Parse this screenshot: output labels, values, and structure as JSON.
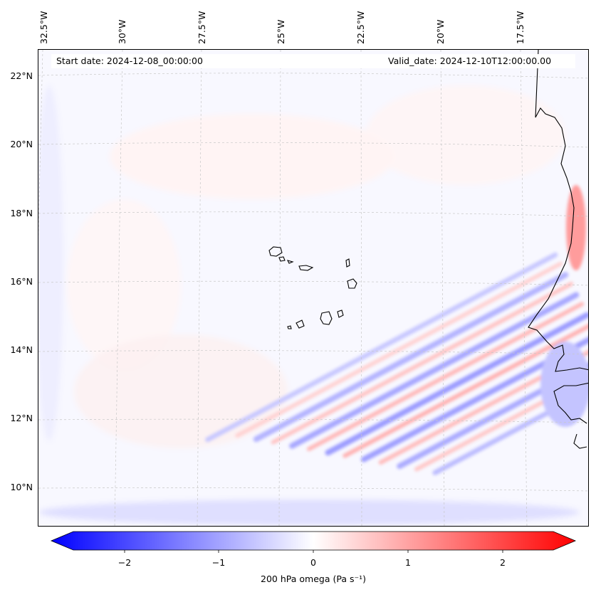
{
  "header": {
    "start_date": "Start date: 2024-12-08_00:00:00",
    "valid_date": "Valid_date: 2024-12-10T12:00:00.00"
  },
  "map": {
    "lon_labels": [
      "32.5°W",
      "30°W",
      "27.5°W",
      "25°W",
      "22.5°W",
      "20°W",
      "17.5°W"
    ],
    "lat_labels": [
      "22°N",
      "20°N",
      "18°N",
      "16°N",
      "14°N",
      "12°N",
      "10°N"
    ]
  },
  "colorbar": {
    "label": "200 hPa omega (Pa s⁻¹)",
    "ticks": [
      "−2",
      "−1",
      "0",
      "1",
      "2"
    ],
    "range": [
      -2.75,
      2.75
    ],
    "colors": {
      "negative": "#0000ff",
      "zero": "#ffffff",
      "positive": "#ff0000"
    }
  }
}
